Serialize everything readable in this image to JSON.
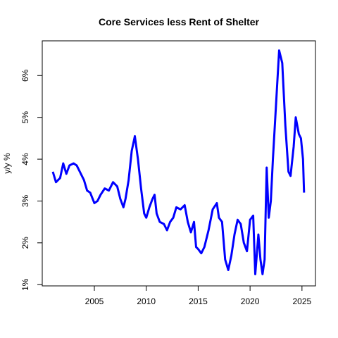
{
  "chart_data": {
    "type": "line",
    "title": "Core Services less Rent of Shelter",
    "y_label": "y/y %",
    "color": "#0000ff",
    "x": [
      2001.0,
      2001.3,
      2001.7,
      2002.0,
      2002.3,
      2002.6,
      2003.0,
      2003.3,
      2003.6,
      2004.0,
      2004.3,
      2004.6,
      2005.0,
      2005.3,
      2005.6,
      2006.0,
      2006.4,
      2006.8,
      2007.2,
      2007.5,
      2007.8,
      2008.0,
      2008.3,
      2008.6,
      2008.9,
      2009.2,
      2009.5,
      2009.8,
      2010.0,
      2010.3,
      2010.6,
      2010.8,
      2011.0,
      2011.3,
      2011.7,
      2012.0,
      2012.3,
      2012.6,
      2012.9,
      2013.3,
      2013.7,
      2014.0,
      2014.3,
      2014.6,
      2014.8,
      2015.0,
      2015.3,
      2015.6,
      2016.0,
      2016.4,
      2016.8,
      2017.0,
      2017.3,
      2017.6,
      2017.9,
      2018.2,
      2018.5,
      2018.8,
      2019.1,
      2019.4,
      2019.7,
      2020.0,
      2020.3,
      2020.5,
      2020.8,
      2021.0,
      2021.2,
      2021.4,
      2021.6,
      2021.8,
      2022.0,
      2022.2,
      2022.5,
      2022.8,
      2023.1,
      2023.4,
      2023.7,
      2023.9,
      2024.2,
      2024.4,
      2024.7,
      2024.9,
      2025.1,
      2025.2
    ],
    "values": [
      3.7,
      3.45,
      3.55,
      3.9,
      3.65,
      3.85,
      3.9,
      3.85,
      3.7,
      3.5,
      3.25,
      3.2,
      2.95,
      3.0,
      3.15,
      3.3,
      3.25,
      3.45,
      3.35,
      3.05,
      2.85,
      3.05,
      3.5,
      4.2,
      4.55,
      4.0,
      3.3,
      2.7,
      2.6,
      2.85,
      3.05,
      3.15,
      2.7,
      2.5,
      2.45,
      2.3,
      2.5,
      2.6,
      2.85,
      2.8,
      2.9,
      2.5,
      2.25,
      2.5,
      1.9,
      1.85,
      1.75,
      1.9,
      2.3,
      2.8,
      2.95,
      2.6,
      2.5,
      1.6,
      1.35,
      1.7,
      2.2,
      2.55,
      2.45,
      2.0,
      1.8,
      2.55,
      2.65,
      1.25,
      2.2,
      1.6,
      1.25,
      1.6,
      3.8,
      2.6,
      3.0,
      4.0,
      5.3,
      6.6,
      6.3,
      4.8,
      3.7,
      3.6,
      4.3,
      5.0,
      4.6,
      4.5,
      4.0,
      3.2
    ],
    "xlim": [
      1999.98,
      2026.3
    ],
    "ylim": [
      0.97,
      6.83
    ],
    "xticks": [
      2005,
      2010,
      2015,
      2020,
      2025
    ],
    "yticks": [
      {
        "value": 1,
        "label": "1%"
      },
      {
        "value": 2,
        "label": "2%"
      },
      {
        "value": 3,
        "label": "3%"
      },
      {
        "value": 4,
        "label": "4%"
      },
      {
        "value": 5,
        "label": "5%"
      },
      {
        "value": 6,
        "label": "6%"
      }
    ]
  }
}
